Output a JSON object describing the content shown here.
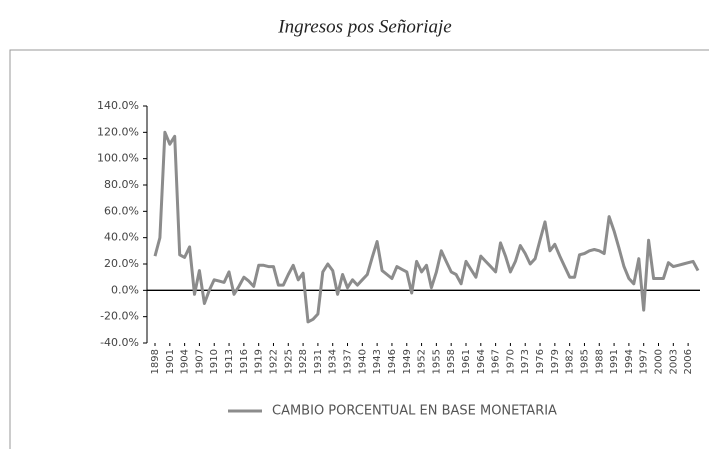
{
  "chart_data": {
    "type": "line",
    "title": "Ingresos pos Señoriaje",
    "x": [
      1898,
      1899,
      1900,
      1901,
      1902,
      1903,
      1904,
      1905,
      1906,
      1907,
      1908,
      1909,
      1910,
      1911,
      1912,
      1913,
      1914,
      1915,
      1916,
      1917,
      1918,
      1919,
      1920,
      1921,
      1922,
      1923,
      1924,
      1925,
      1926,
      1927,
      1928,
      1929,
      1930,
      1931,
      1932,
      1933,
      1934,
      1935,
      1936,
      1937,
      1938,
      1939,
      1940,
      1941,
      1942,
      1943,
      1944,
      1945,
      1946,
      1947,
      1948,
      1949,
      1950,
      1951,
      1952,
      1953,
      1954,
      1955,
      1956,
      1957,
      1958,
      1959,
      1960,
      1961,
      1962,
      1963,
      1964,
      1965,
      1966,
      1967,
      1968,
      1969,
      1970,
      1971,
      1972,
      1973,
      1974,
      1975,
      1976,
      1977,
      1978,
      1979,
      1980,
      1981,
      1982,
      1983,
      1984,
      1985,
      1986,
      1987,
      1988,
      1989,
      1990,
      1991,
      1992,
      1993,
      1994,
      1995,
      1996,
      1997,
      1998,
      1999,
      2000,
      2001,
      2002,
      2003,
      2004,
      2005,
      2006,
      2007,
      2008
    ],
    "series": [
      {
        "name": "CAMBIO PORCENTUAL EN BASE MONETARIA",
        "color": "#8c8c8c",
        "values": [
          26,
          40,
          120,
          111,
          117,
          27,
          25,
          33,
          -3,
          15,
          -10,
          0,
          8,
          7,
          6,
          14,
          -3,
          3,
          10,
          7,
          3,
          19,
          19,
          18,
          18,
          4,
          4,
          12,
          19,
          8,
          13,
          -24,
          -22,
          -18,
          14,
          20,
          15,
          -3,
          12,
          2,
          8,
          4,
          8,
          12,
          25,
          37,
          15,
          12,
          9,
          18,
          16,
          14,
          -2,
          22,
          14,
          19,
          2,
          14,
          30,
          22,
          14,
          12,
          5,
          22,
          16,
          10,
          26,
          22,
          18,
          14,
          36,
          26,
          14,
          22,
          34,
          28,
          20,
          24,
          38,
          52,
          30,
          35,
          26,
          18,
          10,
          10,
          27,
          28,
          30,
          31,
          30,
          28,
          56,
          45,
          32,
          18,
          9,
          5,
          24,
          -15,
          38,
          9,
          9,
          9,
          21,
          18,
          19,
          20,
          21,
          22,
          15
        ]
      }
    ],
    "xticks": [
      1898,
      1901,
      1904,
      1907,
      1910,
      1913,
      1916,
      1919,
      1922,
      1925,
      1928,
      1931,
      1934,
      1937,
      1940,
      1943,
      1946,
      1949,
      1952,
      1955,
      1958,
      1961,
      1964,
      1967,
      1970,
      1973,
      1976,
      1979,
      1982,
      1985,
      1988,
      1991,
      1994,
      1997,
      2000,
      2003,
      2006
    ],
    "ylim": [
      -40,
      140
    ],
    "yticks": [
      {
        "value": -40,
        "label": "-40.0%"
      },
      {
        "value": -20,
        "label": "-20.0%"
      },
      {
        "value": 0,
        "label": "0.0%"
      },
      {
        "value": 20,
        "label": "20.0%"
      },
      {
        "value": 40,
        "label": "40.0%"
      },
      {
        "value": 60,
        "label": "60.0%"
      },
      {
        "value": 80,
        "label": "80.0%"
      },
      {
        "value": 100,
        "label": "100.0%"
      },
      {
        "value": 120,
        "label": "120.0%"
      },
      {
        "value": 140,
        "label": "140.0%"
      }
    ],
    "legend": "bottom"
  }
}
